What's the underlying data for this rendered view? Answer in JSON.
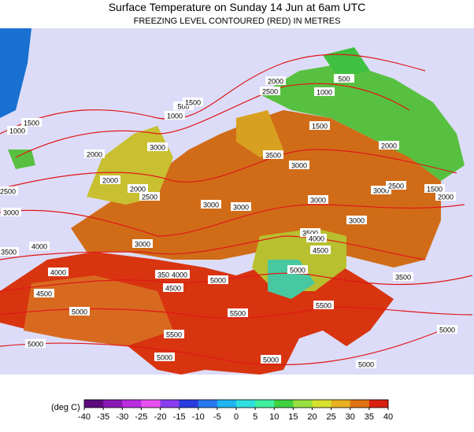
{
  "title": "Surface Temperature on Sunday 14 Jun at 6am UTC",
  "subtitle": "FREEZING LEVEL CONTOURED (RED) IN METRES",
  "legend": {
    "unit": "(deg C)",
    "ticks": [
      -40,
      -35,
      -30,
      -25,
      -20,
      -15,
      -10,
      -5,
      0,
      5,
      10,
      15,
      20,
      25,
      30,
      35,
      40
    ],
    "colors": [
      "#5c0a7e",
      "#8a1ab4",
      "#b82ee0",
      "#e650f0",
      "#8a3cf0",
      "#2a3ce0",
      "#2878f0",
      "#20b4f0",
      "#30e0e0",
      "#40f0a0",
      "#40d040",
      "#98e040",
      "#d8e030",
      "#e8b020",
      "#e07010",
      "#d82010"
    ]
  },
  "contours": [
    "2000",
    "2500",
    "500",
    "1000",
    "1500",
    "2000",
    "1000",
    "500",
    "1500",
    "1500",
    "1000",
    "3000",
    "3500",
    "3000",
    "2000",
    "2000",
    "2500",
    "2000",
    "2500",
    "3000",
    "3000",
    "3000",
    "3000",
    "2500",
    "1500",
    "2000",
    "3000",
    "3000",
    "3500",
    "4000",
    "4500",
    "3000",
    "3500",
    "4000",
    "4000",
    "3500",
    "4000",
    "5000",
    "4500",
    "5000",
    "3500",
    "4500",
    "5000",
    "5500",
    "5500",
    "5500",
    "5000",
    "5000",
    "5000",
    "5000",
    "5000"
  ]
}
